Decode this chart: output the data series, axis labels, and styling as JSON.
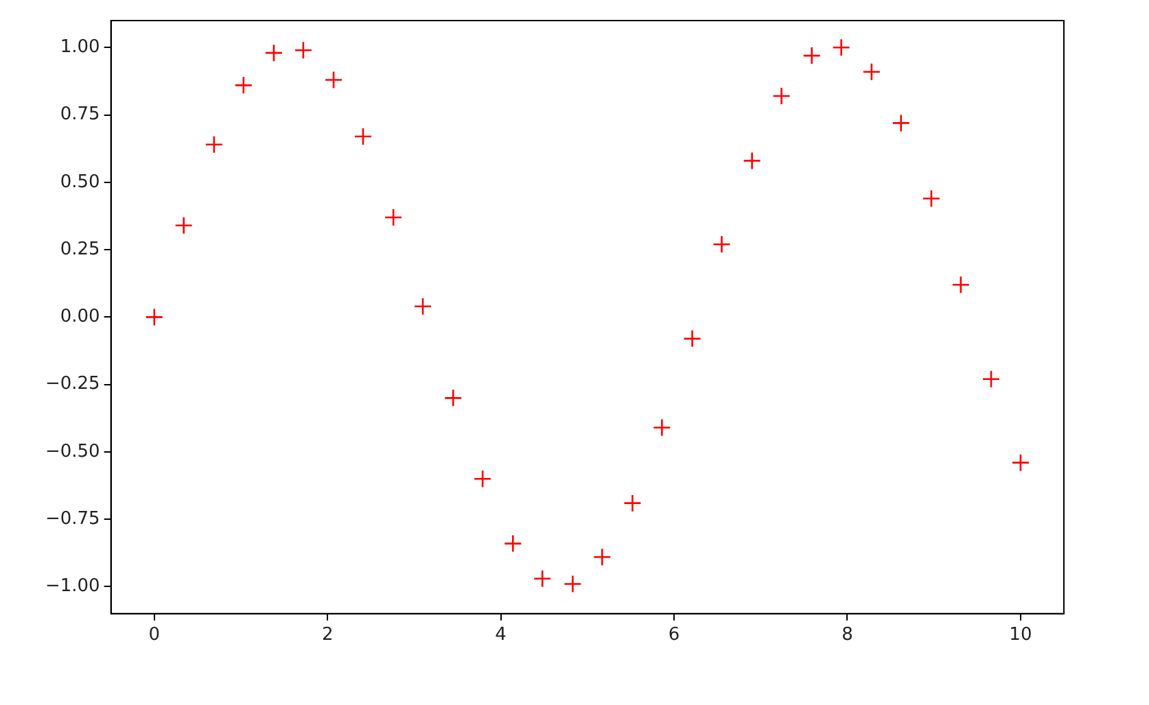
{
  "chart_data": {
    "type": "scatter",
    "x": [
      0,
      0.34,
      0.69,
      1.03,
      1.38,
      1.72,
      2.07,
      2.41,
      2.76,
      3.1,
      3.45,
      3.79,
      4.14,
      4.48,
      4.83,
      5.17,
      5.52,
      5.86,
      6.21,
      6.55,
      6.9,
      7.24,
      7.59,
      7.93,
      8.28,
      8.62,
      8.97,
      9.31,
      9.66,
      10
    ],
    "series": [
      {
        "color": "#ff0000",
        "values": [
          0,
          0.34,
          0.64,
          0.86,
          0.98,
          0.99,
          0.88,
          0.67,
          0.37,
          0.04,
          -0.3,
          -0.6,
          -0.84,
          -0.97,
          -0.99,
          -0.89,
          -0.69,
          -0.41,
          -0.08,
          0.27,
          0.58,
          0.82,
          0.97,
          1.0,
          0.91,
          0.72,
          0.44,
          0.12,
          -0.23,
          -0.54
        ]
      }
    ],
    "xlim": [
      -0.5,
      10.5
    ],
    "ylim": [
      -1.1,
      1.1
    ],
    "xticks": [
      0,
      2,
      4,
      6,
      8,
      10
    ],
    "yticks": [
      {
        "value": -1,
        "label": "−1.00"
      },
      {
        "value": -0.75,
        "label": "−0.75"
      },
      {
        "value": -0.5,
        "label": "−0.50"
      },
      {
        "value": -0.25,
        "label": "−0.25"
      },
      {
        "value": 0,
        "label": "0.00"
      },
      {
        "value": 0.25,
        "label": "0.25"
      },
      {
        "value": 0.5,
        "label": "0.50"
      },
      {
        "value": 0.75,
        "label": "0.75"
      },
      {
        "value": 1,
        "label": "1.00"
      }
    ],
    "marker": "cross",
    "grid": false,
    "legend": false
  }
}
